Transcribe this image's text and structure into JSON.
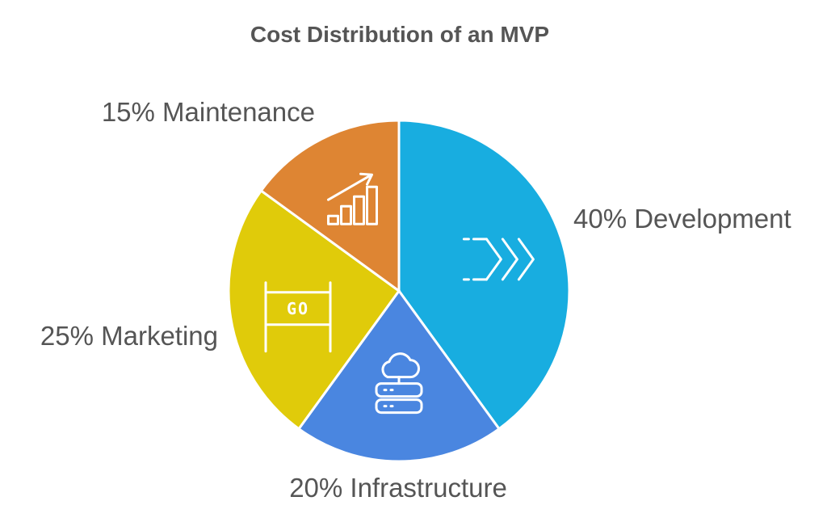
{
  "chart_data": {
    "type": "pie",
    "title": "Cost Distribution of an MVP",
    "slices": [
      {
        "label": "40% Development",
        "category": "Development",
        "value": 40,
        "color": "#18ADE0",
        "icon": "double-chevron-right-icon"
      },
      {
        "label": "20% Infrastructure",
        "category": "Infrastructure",
        "value": 20,
        "color": "#4A86E0",
        "icon": "cloud-server-icon"
      },
      {
        "label": "25% Marketing",
        "category": "Marketing",
        "value": 25,
        "color": "#E0CB0A",
        "icon": "go-sign-icon"
      },
      {
        "label": "15% Maintenance",
        "category": "Maintenance",
        "value": 15,
        "color": "#DE8533",
        "icon": "growth-chart-icon"
      }
    ],
    "start": "12 o'clock",
    "direction": "clockwise",
    "legend": "none"
  }
}
